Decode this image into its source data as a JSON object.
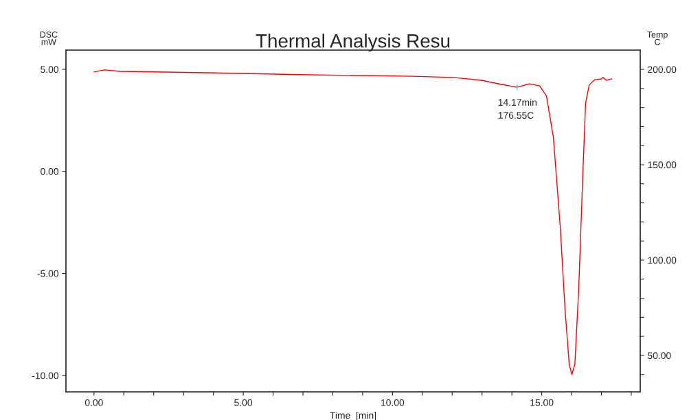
{
  "chart_data": {
    "type": "line",
    "title": "Thermal Analysis Resu",
    "xlabel": "Time  [min]",
    "ylabel": "DSC\nmW",
    "y2label": "Temp\nC",
    "x": [
      0.0,
      0.35,
      0.88,
      3.76,
      7.21,
      10.67,
      12.05,
      12.97,
      13.66,
      14.17,
      14.59,
      14.93,
      15.16,
      15.39,
      15.62,
      15.78,
      15.92,
      16.01,
      16.11,
      16.24,
      16.38,
      16.47,
      16.59,
      16.77,
      17.0,
      17.05,
      17.17,
      17.35
    ],
    "series": [
      {
        "color": "#ff0000",
        "values": [
          4.87,
          4.97,
          4.9,
          4.83,
          4.73,
          4.66,
          4.6,
          4.46,
          4.26,
          4.12,
          4.29,
          4.19,
          3.69,
          1.67,
          -2.71,
          -6.75,
          -9.44,
          -9.95,
          -9.44,
          -5.74,
          -0.02,
          3.35,
          4.23,
          4.49,
          4.53,
          4.6,
          4.46,
          4.53
        ]
      }
    ],
    "annotations": [
      {
        "text": "14.17min\n176.55C",
        "x": 14.17,
        "y": 4.12
      }
    ],
    "xlim": [
      -0.94,
      18.3
    ],
    "ylim": [
      -10.8,
      5.94
    ],
    "y2lim": [
      30.9,
      210.1
    ],
    "xticks": [
      {
        "value": 0,
        "label": "0.00"
      },
      {
        "value": 1,
        "label": null
      },
      {
        "value": 2,
        "label": null
      },
      {
        "value": 3,
        "label": null
      },
      {
        "value": 4,
        "label": null
      },
      {
        "value": 5,
        "label": "5.00"
      },
      {
        "value": 6,
        "label": null
      },
      {
        "value": 7,
        "label": null
      },
      {
        "value": 8,
        "label": null
      },
      {
        "value": 9,
        "label": null
      },
      {
        "value": 10,
        "label": "10.00"
      },
      {
        "value": 11,
        "label": null
      },
      {
        "value": 12,
        "label": null
      },
      {
        "value": 13,
        "label": null
      },
      {
        "value": 14,
        "label": null
      },
      {
        "value": 15,
        "label": "15.00"
      },
      {
        "value": 16,
        "label": null
      },
      {
        "value": 17,
        "label": null
      },
      {
        "value": 18,
        "label": null
      }
    ],
    "yticks": [
      {
        "value": -10,
        "label": "-10.00"
      },
      {
        "value": -5,
        "label": "-5.00"
      },
      {
        "value": 0,
        "label": "0.00"
      },
      {
        "value": 5,
        "label": "5.00"
      }
    ],
    "y2ticks": [
      {
        "value": 40,
        "label": null
      },
      {
        "value": 50,
        "label": "50.00"
      },
      {
        "value": 60,
        "label": null
      },
      {
        "value": 70,
        "label": null
      },
      {
        "value": 80,
        "label": null
      },
      {
        "value": 90,
        "label": null
      },
      {
        "value": 100,
        "label": "100.00"
      },
      {
        "value": 110,
        "label": null
      },
      {
        "value": 120,
        "label": null
      },
      {
        "value": 130,
        "label": null
      },
      {
        "value": 140,
        "label": null
      },
      {
        "value": 150,
        "label": "150.00"
      },
      {
        "value": 160,
        "label": null
      },
      {
        "value": 170,
        "label": null
      },
      {
        "value": 180,
        "label": null
      },
      {
        "value": 190,
        "label": null
      },
      {
        "value": 200,
        "label": "200.00"
      }
    ],
    "grid": false,
    "legend": false,
    "marker": "none",
    "line_style": "solid"
  }
}
